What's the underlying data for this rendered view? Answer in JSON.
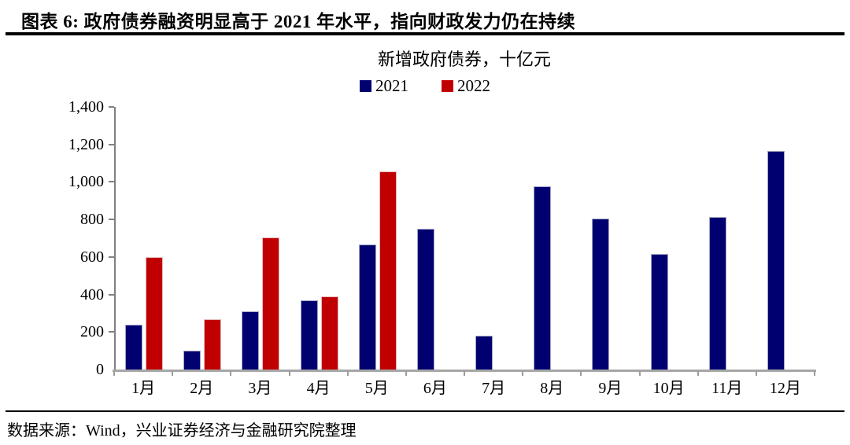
{
  "page": {
    "title": "图表 6: 政府债券融资明显高于 2021 年水平，指向财政发力仍在持续",
    "source": "数据来源：Wind，兴业证券经济与金融研究院整理"
  },
  "chart_data": {
    "type": "bar",
    "title": "新增政府债券，十亿元",
    "categories": [
      "1月",
      "2月",
      "3月",
      "4月",
      "5月",
      "6月",
      "7月",
      "8月",
      "9月",
      "10月",
      "11月",
      "12月"
    ],
    "series": [
      {
        "name": "2021",
        "color": "#000070",
        "border_color": "#a3a3c2",
        "values": [
          240,
          100,
          310,
          370,
          665,
          750,
          180,
          975,
          805,
          615,
          815,
          1165
        ]
      },
      {
        "name": "2022",
        "color": "#c00000",
        "border_color": "#e8b8b8",
        "values": [
          600,
          270,
          705,
          390,
          1055,
          null,
          null,
          null,
          null,
          null,
          null,
          null
        ]
      }
    ],
    "ylim": [
      0,
      1400
    ],
    "ytick_step": 200,
    "grid": false,
    "legend_position": "top-center",
    "axis_color": "#808080",
    "baseline_color": "#a6a6a6"
  }
}
